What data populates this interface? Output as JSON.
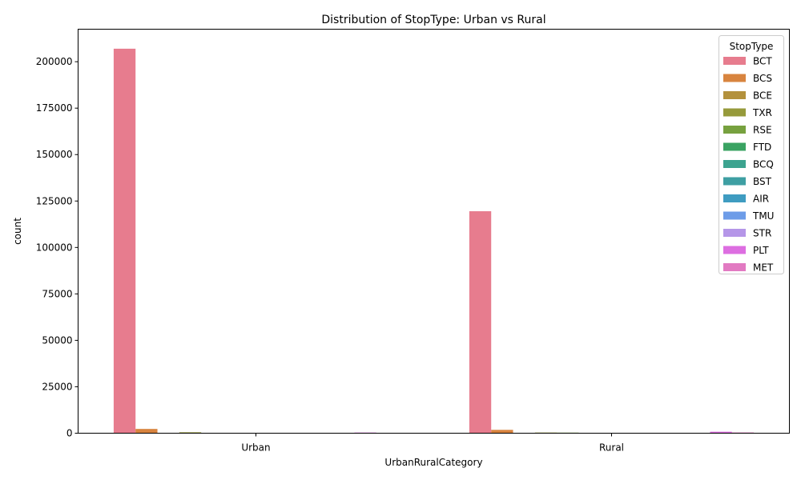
{
  "chart_data": {
    "type": "bar",
    "title": "Distribution of StopType: Urban vs Rural",
    "xlabel": "UrbanRuralCategory",
    "ylabel": "count",
    "categories": [
      "Urban",
      "Rural"
    ],
    "ylim": [
      0,
      217500
    ],
    "yticks": [
      0,
      25000,
      50000,
      75000,
      100000,
      125000,
      150000,
      175000,
      200000
    ],
    "grid": false,
    "legend": {
      "title": "StopType",
      "position": "top-right"
    },
    "series": [
      {
        "name": "BCT",
        "color": "#e77c8e",
        "values": [
          207000,
          119500
        ]
      },
      {
        "name": "BCS",
        "color": "#d8843f",
        "values": [
          2300,
          1800
        ]
      },
      {
        "name": "BCE",
        "color": "#b3913c",
        "values": [
          80,
          60
        ]
      },
      {
        "name": "TXR",
        "color": "#969a3b",
        "values": [
          500,
          350
        ]
      },
      {
        "name": "RSE",
        "color": "#77a13f",
        "values": [
          150,
          300
        ]
      },
      {
        "name": "FTD",
        "color": "#3aa362",
        "values": [
          50,
          40
        ]
      },
      {
        "name": "BCQ",
        "color": "#3ca38f",
        "values": [
          40,
          30
        ]
      },
      {
        "name": "BST",
        "color": "#3e9fa3",
        "values": [
          40,
          50
        ]
      },
      {
        "name": "AIR",
        "color": "#3f9cc1",
        "values": [
          30,
          30
        ]
      },
      {
        "name": "TMU",
        "color": "#6d9ce8",
        "values": [
          30,
          30
        ]
      },
      {
        "name": "STR",
        "color": "#b596e8",
        "values": [
          40,
          60
        ]
      },
      {
        "name": "PLT",
        "color": "#dd6ee1",
        "values": [
          350,
          800
        ]
      },
      {
        "name": "MET",
        "color": "#e27ac2",
        "values": [
          60,
          400
        ]
      }
    ]
  }
}
